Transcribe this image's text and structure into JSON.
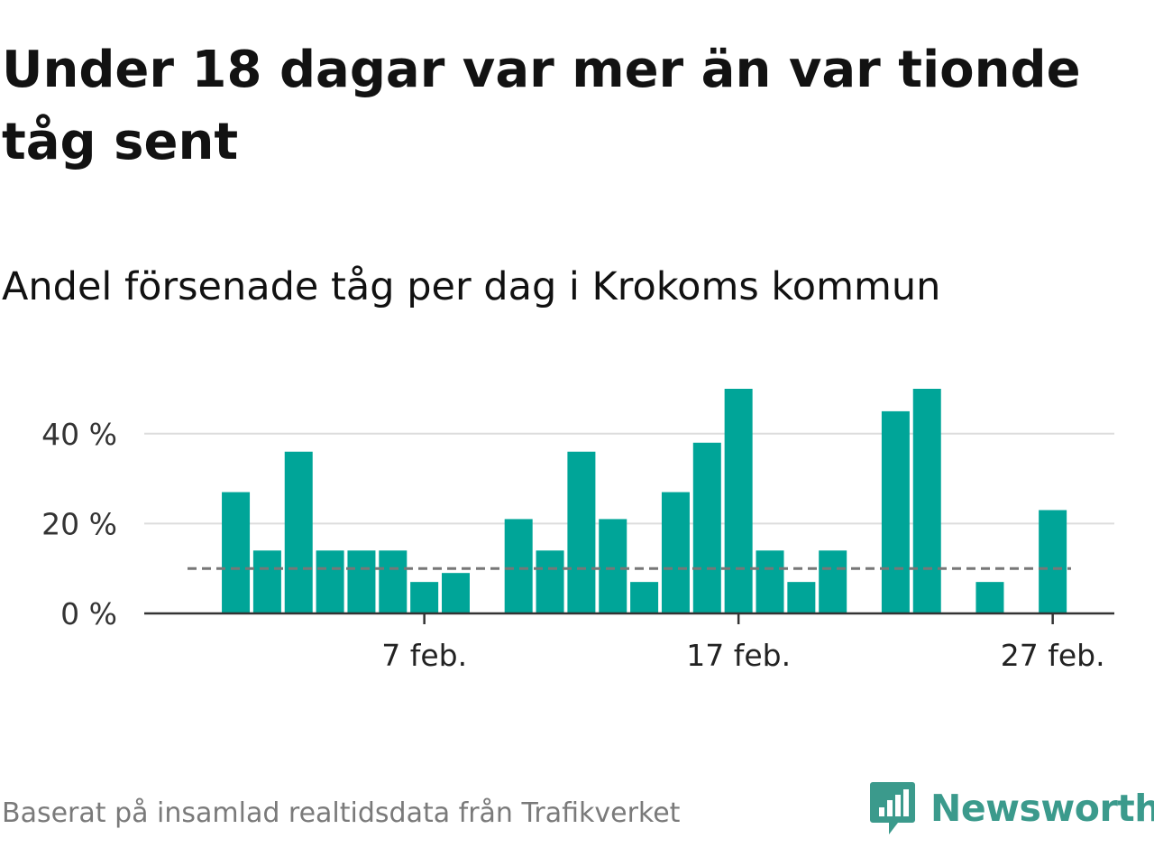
{
  "title": "Under 18 dagar var mer än var tionde tåg sent",
  "subtitle": "Andel försenade tåg per dag i Krokoms kommun",
  "source": "Baserat på insamlad realtidsdata från Trafikverket",
  "brand": {
    "name": "Newsworthy",
    "color": "#3b9a8c",
    "icon": "newsworthy-logo-icon"
  },
  "colors": {
    "bar": "#00a598",
    "reference_line": "#777777",
    "grid": "#dddddd",
    "axis": "#333333"
  },
  "chart_data": {
    "type": "bar",
    "x": [
      "2025-01-31",
      "2025-02-01",
      "2025-02-02",
      "2025-02-03",
      "2025-02-04",
      "2025-02-05",
      "2025-02-06",
      "2025-02-07",
      "2025-02-08",
      "2025-02-09",
      "2025-02-10",
      "2025-02-11",
      "2025-02-12",
      "2025-02-13",
      "2025-02-14",
      "2025-02-15",
      "2025-02-16",
      "2025-02-17",
      "2025-02-18",
      "2025-02-19",
      "2025-02-20",
      "2025-02-21",
      "2025-02-22",
      "2025-02-23",
      "2025-02-24",
      "2025-02-25",
      "2025-02-26",
      "2025-02-27",
      "2025-02-28"
    ],
    "values": [
      null,
      27,
      14,
      36,
      14,
      14,
      14,
      7,
      9,
      null,
      21,
      14,
      36,
      21,
      7,
      27,
      38,
      50,
      14,
      7,
      14,
      null,
      45,
      50,
      null,
      7,
      null,
      23,
      null
    ],
    "ylim": [
      0,
      50
    ],
    "yticks": [
      0,
      20,
      40
    ],
    "ytick_labels": [
      "0 %",
      "20 %",
      "40 %"
    ],
    "xticks": [
      "2025-02-07",
      "2025-02-17",
      "2025-02-27"
    ],
    "xtick_labels": [
      "7 feb.",
      "17 feb.",
      "27 feb."
    ],
    "reference_line": {
      "value": 10,
      "style": "dashed"
    },
    "grid": true
  }
}
